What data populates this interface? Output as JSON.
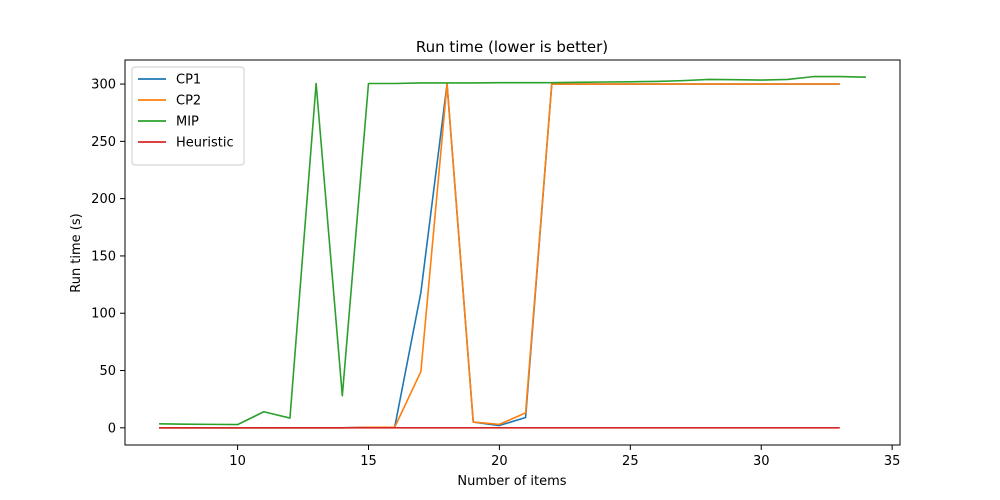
{
  "chart_data": {
    "type": "line",
    "title": "Run time (lower is better)",
    "xlabel": "Number of items",
    "ylabel": "Run time (s)",
    "xlim": [
      5.7,
      35.3
    ],
    "ylim": [
      -15,
      321
    ],
    "xticks": [
      10,
      15,
      20,
      25,
      30,
      35
    ],
    "yticks": [
      0,
      50,
      100,
      150,
      200,
      250,
      300
    ],
    "grid": false,
    "legend_position": "top-left",
    "series": [
      {
        "name": "CP1",
        "color": "#1f77b4",
        "x": [
          7,
          8,
          9,
          10,
          11,
          12,
          13,
          14,
          15,
          16,
          17,
          18,
          19,
          20,
          21,
          22,
          23,
          24,
          25,
          26,
          27,
          28,
          29,
          30,
          31,
          32,
          33
        ],
        "y": [
          0,
          0,
          0,
          0,
          0,
          0,
          0,
          0,
          0.5,
          0.5,
          118,
          300,
          5,
          2,
          9,
          300,
          300,
          300,
          300,
          300,
          300,
          300,
          300,
          300,
          300,
          300,
          300
        ]
      },
      {
        "name": "CP2",
        "color": "#ff7f0e",
        "x": [
          7,
          8,
          9,
          10,
          11,
          12,
          13,
          14,
          15,
          16,
          17,
          18,
          19,
          20,
          21,
          22,
          23,
          24,
          25,
          26,
          27,
          28,
          29,
          30,
          31,
          32,
          33
        ],
        "y": [
          0,
          0,
          0,
          0,
          0,
          0,
          0,
          0,
          0.5,
          0.5,
          49,
          300,
          5,
          3,
          13,
          300,
          300,
          300,
          300,
          300,
          300,
          300,
          300,
          300,
          300,
          300,
          300
        ]
      },
      {
        "name": "MIP",
        "color": "#2ca02c",
        "x": [
          7,
          8,
          9,
          10,
          11,
          12,
          13,
          14,
          15,
          16,
          17,
          18,
          19,
          20,
          21,
          22,
          23,
          24,
          25,
          26,
          27,
          28,
          29,
          30,
          31,
          32,
          33,
          34
        ],
        "y": [
          3.5,
          3.2,
          3,
          2.8,
          14,
          8.5,
          300.5,
          28,
          300.5,
          300.5,
          301,
          301,
          301,
          301.2,
          301.2,
          301.2,
          301.5,
          301.8,
          302,
          302.3,
          303,
          304,
          303.8,
          303.5,
          304,
          306.5,
          306.5,
          306
        ]
      },
      {
        "name": "Heuristic",
        "color": "#d62728",
        "x": [
          7,
          8,
          9,
          10,
          11,
          12,
          13,
          14,
          15,
          16,
          17,
          18,
          19,
          20,
          21,
          22,
          23,
          24,
          25,
          26,
          27,
          28,
          29,
          30,
          31,
          32,
          33
        ],
        "y": [
          0,
          0,
          0,
          0,
          0,
          0,
          0,
          0,
          0,
          0,
          0,
          0,
          0,
          0,
          0,
          0,
          0,
          0,
          0,
          0,
          0,
          0,
          0,
          0,
          0,
          0,
          0
        ]
      }
    ]
  }
}
